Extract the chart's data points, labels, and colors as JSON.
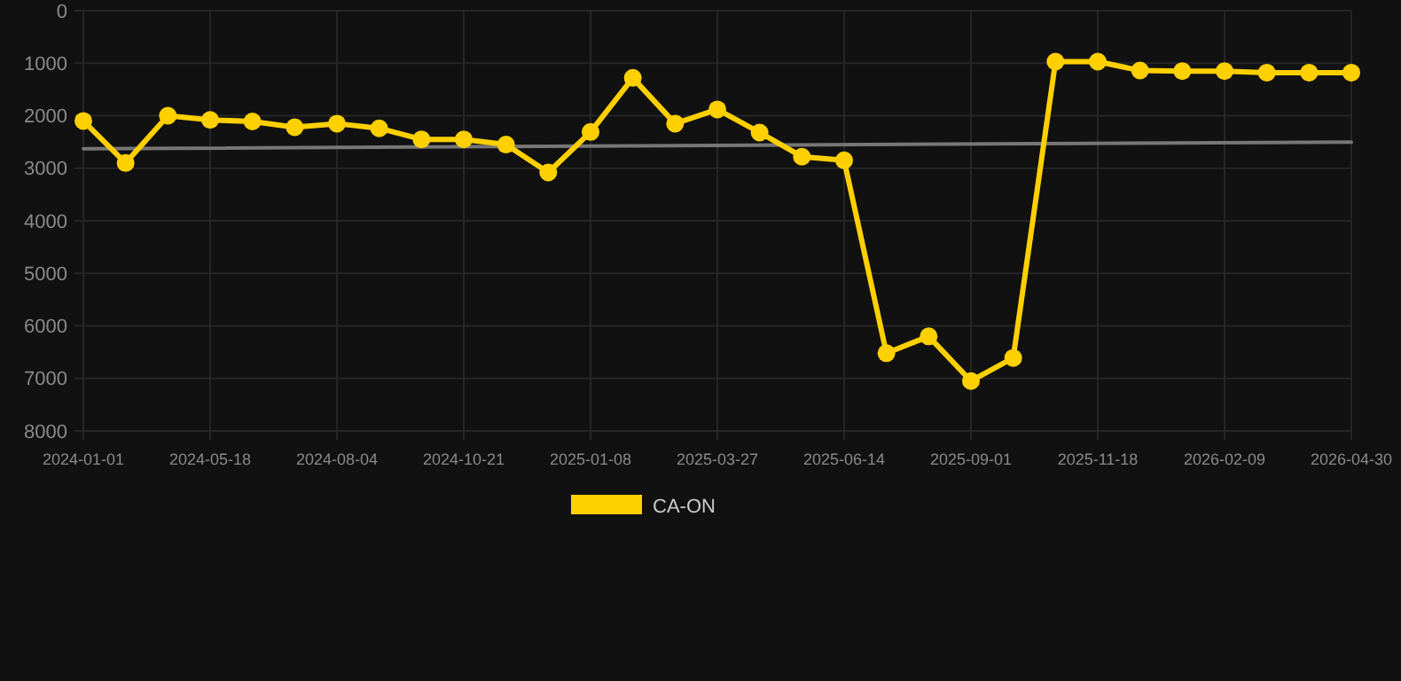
{
  "chart_data": {
    "type": "line",
    "categories": [
      "2024-01-01",
      null,
      null,
      "2024-05-18",
      null,
      null,
      "2024-08-04",
      null,
      null,
      "2024-10-21",
      null,
      null,
      "2025-01-08",
      null,
      null,
      "2025-03-27",
      null,
      null,
      "2025-06-14",
      null,
      null,
      "2025-09-01",
      null,
      null,
      "2025-11-18",
      null,
      null,
      "2026-02-09",
      null,
      null,
      "2026-04-30"
    ],
    "series": [
      {
        "name": "CA-ON",
        "color": "#ffd000",
        "marker": "circle",
        "values": [
          2100,
          2900,
          2000,
          2080,
          2110,
          2220,
          2150,
          2240,
          2450,
          2450,
          2550,
          3080,
          2310,
          1280,
          2150,
          1880,
          2320,
          2780,
          2850,
          6520,
          6200,
          7050,
          6610,
          970,
          970,
          1140,
          1150,
          1150,
          1180,
          1180,
          1180
        ]
      },
      {
        "type": "line",
        "color": "#777777",
        "marker": "none",
        "values": [
          2630,
          null,
          null,
          null,
          null,
          null,
          null,
          null,
          null,
          null,
          null,
          null,
          null,
          null,
          null,
          null,
          null,
          null,
          null,
          null,
          null,
          null,
          null,
          null,
          null,
          null,
          null,
          null,
          null,
          null,
          2500
        ]
      }
    ],
    "ylim": [
      8000,
      0
    ],
    "yticks": [
      0,
      1000,
      2000,
      3000,
      4000,
      5000,
      6000,
      7000,
      8000
    ],
    "grid": true,
    "legend": "bottom"
  }
}
